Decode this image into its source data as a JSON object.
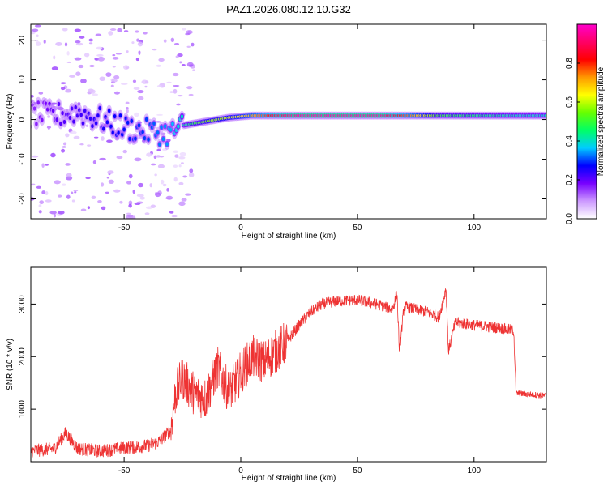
{
  "figure": {
    "title": "PAZ1.2026.080.12.10.G32"
  },
  "chart_data": [
    {
      "id": "spectrogram",
      "type": "heatmap",
      "xlabel": "Height of straight line (km)",
      "ylabel": "Frequency (Hz)",
      "xlim": [
        -90,
        131
      ],
      "ylim": [
        -25,
        24
      ],
      "xticks": [
        -50,
        0,
        50,
        100
      ],
      "yticks": [
        -20,
        -10,
        0,
        10,
        20
      ],
      "colorbar": {
        "label": "Normalized spectral amplitude",
        "range": [
          0,
          1
        ],
        "ticks": [
          "0.0",
          "0.2",
          "0.4",
          "0.6",
          "0.8"
        ],
        "tick_values": [
          0.0,
          0.2,
          0.4,
          0.6,
          0.8
        ],
        "colors": [
          "#ffffff",
          "#cc99ff",
          "#7700ff",
          "#0000ff",
          "#00ccff",
          "#00ff66",
          "#66ff00",
          "#ffff00",
          "#ff9900",
          "#ff0000",
          "#ff0066",
          "#ff00cc"
        ]
      },
      "ridge": [
        {
          "x": -90,
          "f": 1.5,
          "a": 0.15
        },
        {
          "x": -80,
          "f": 1.0,
          "a": 0.2
        },
        {
          "x": -70,
          "f": 2.0,
          "a": 0.22
        },
        {
          "x": -60,
          "f": 0.0,
          "a": 0.25
        },
        {
          "x": -50,
          "f": -2.0,
          "a": 0.28
        },
        {
          "x": -40,
          "f": -3.0,
          "a": 0.3
        },
        {
          "x": -30,
          "f": -3.5,
          "a": 0.35
        },
        {
          "x": -25,
          "f": -1.5,
          "a": 0.4
        },
        {
          "x": -15,
          "f": -0.5,
          "a": 0.55
        },
        {
          "x": -5,
          "f": 0.5,
          "a": 0.6
        },
        {
          "x": 5,
          "f": 1.0,
          "a": 0.7
        },
        {
          "x": 15,
          "f": 1.0,
          "a": 0.85
        },
        {
          "x": 25,
          "f": 1.0,
          "a": 0.95
        },
        {
          "x": 60,
          "f": 1.0,
          "a": 0.95
        },
        {
          "x": 75,
          "f": 1.0,
          "a": 0.7
        },
        {
          "x": 85,
          "f": 1.0,
          "a": 0.5
        },
        {
          "x": 100,
          "f": 1.0,
          "a": 0.45
        },
        {
          "x": 120,
          "f": 1.0,
          "a": 0.4
        },
        {
          "x": 131,
          "f": 1.0,
          "a": 0.4
        }
      ]
    },
    {
      "id": "snr",
      "type": "line",
      "xlabel": "Height of straight line (km)",
      "ylabel": "SNR (10 * v/v)",
      "xlim": [
        -90,
        131
      ],
      "ylim": [
        0,
        3700
      ],
      "xticks": [
        -50,
        0,
        50,
        100
      ],
      "yticks": [
        1000,
        2000,
        3000
      ],
      "color": "#ee3333",
      "series": [
        {
          "x": -90,
          "y": 200
        },
        {
          "x": -80,
          "y": 250
        },
        {
          "x": -75,
          "y": 550
        },
        {
          "x": -70,
          "y": 250
        },
        {
          "x": -60,
          "y": 200
        },
        {
          "x": -50,
          "y": 260
        },
        {
          "x": -40,
          "y": 300
        },
        {
          "x": -35,
          "y": 380
        },
        {
          "x": -30,
          "y": 600
        },
        {
          "x": -28,
          "y": 1300
        },
        {
          "x": -25,
          "y": 1600
        },
        {
          "x": -20,
          "y": 1300
        },
        {
          "x": -15,
          "y": 1200
        },
        {
          "x": -10,
          "y": 1800
        },
        {
          "x": -5,
          "y": 1300
        },
        {
          "x": 0,
          "y": 1700
        },
        {
          "x": 5,
          "y": 2000
        },
        {
          "x": 10,
          "y": 1900
        },
        {
          "x": 15,
          "y": 2100
        },
        {
          "x": 20,
          "y": 2300
        },
        {
          "x": 25,
          "y": 2600
        },
        {
          "x": 30,
          "y": 2850
        },
        {
          "x": 35,
          "y": 3000
        },
        {
          "x": 40,
          "y": 3050
        },
        {
          "x": 50,
          "y": 3080
        },
        {
          "x": 60,
          "y": 2980
        },
        {
          "x": 65,
          "y": 2900
        },
        {
          "x": 67,
          "y": 3200
        },
        {
          "x": 68,
          "y": 2100
        },
        {
          "x": 70,
          "y": 2950
        },
        {
          "x": 80,
          "y": 2850
        },
        {
          "x": 85,
          "y": 2750
        },
        {
          "x": 88,
          "y": 3300
        },
        {
          "x": 89,
          "y": 2100
        },
        {
          "x": 92,
          "y": 2650
        },
        {
          "x": 100,
          "y": 2600
        },
        {
          "x": 110,
          "y": 2550
        },
        {
          "x": 117,
          "y": 2500
        },
        {
          "x": 118,
          "y": 1300
        },
        {
          "x": 125,
          "y": 1280
        },
        {
          "x": 131,
          "y": 1250
        }
      ]
    }
  ]
}
